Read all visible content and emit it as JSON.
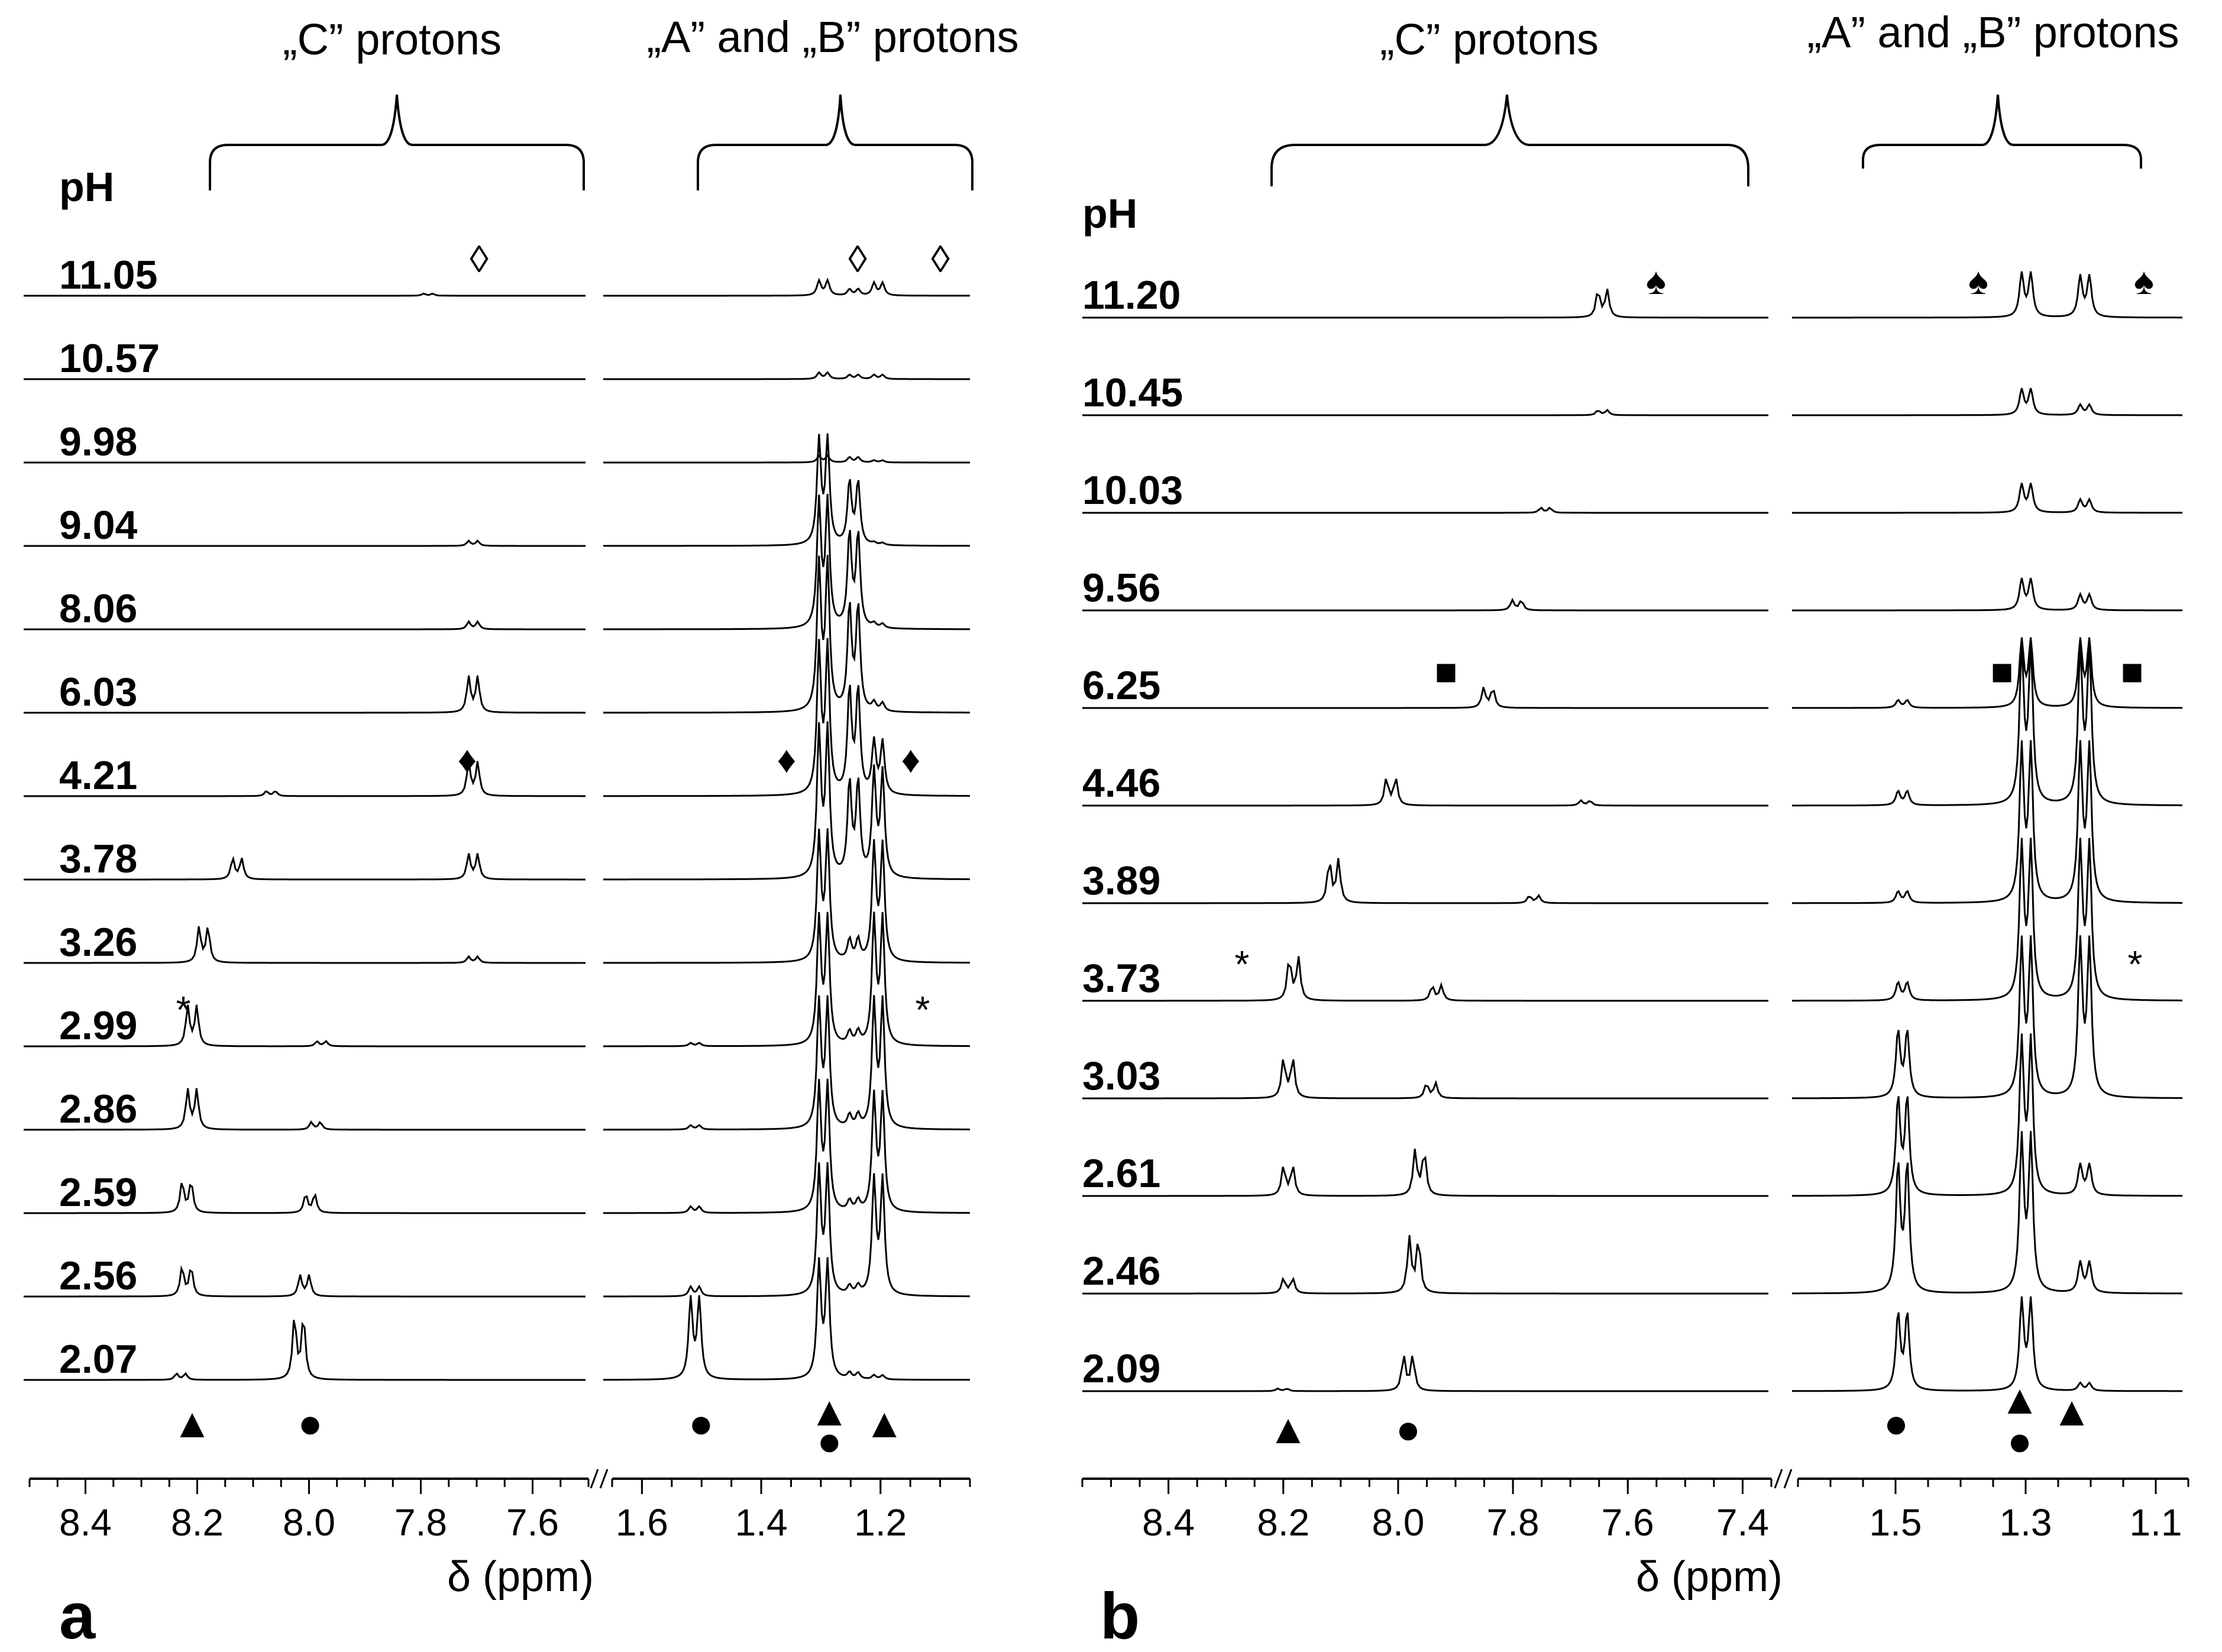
{
  "chart_data": [
    {
      "type": "line",
      "subtype": "stacked NMR spectra (1H, pH titration)",
      "panel_label": "a",
      "xlabel": "δ (ppm)",
      "x_axis_reversed": true,
      "x_axis_break": "//",
      "row_header": "pH",
      "group_labels": {
        "c": "„C” protons",
        "ab": "„A” and „B” protons"
      },
      "xlim_c": [
        8.5,
        7.5
      ],
      "xlim_ab": [
        1.65,
        1.05
      ],
      "xticks_c": [
        "8.4",
        "8.2",
        "8.0",
        "7.8",
        "7.6"
      ],
      "xticks_ab": [
        "1.6",
        "1.4",
        "1.2"
      ],
      "ph_values": [
        "11.05",
        "10.57",
        "9.98",
        "9.04",
        "8.06",
        "6.03",
        "4.21",
        "3.78",
        "3.26",
        "2.99",
        "2.86",
        "2.59",
        "2.56",
        "2.07"
      ],
      "c_doublet_ppm": [
        7.78,
        null,
        null,
        7.7,
        7.7,
        7.7,
        7.7,
        8.12,
        8.18,
        8.2,
        8.2,
        8.21,
        8.21,
        8.22
      ],
      "c_doublet_rel_height": [
        0.05,
        0.0,
        0.0,
        0.12,
        0.18,
        0.85,
        0.8,
        0.5,
        0.85,
        0.95,
        0.95,
        0.75,
        0.7,
        0.15
      ],
      "c_doublet2_ppm": [
        null,
        null,
        null,
        null,
        null,
        null,
        8.06,
        7.7,
        7.7,
        7.97,
        7.98,
        7.99,
        8.0,
        8.01
      ],
      "c_doublet2_rel_height": [
        0.0,
        0.0,
        0.0,
        0.0,
        0.0,
        0.0,
        0.12,
        0.6,
        0.15,
        0.12,
        0.18,
        0.45,
        0.5,
        1.5
      ],
      "ab_peak_ppm": {
        "doublet_1.50": 1.5,
        "doublet_1.29": 1.29,
        "doublet_1.24": 1.24,
        "doublet_1.20": 1.2
      },
      "ab_heights_per_ph": {
        "doublet_1.50": [
          0.0,
          0.0,
          0.0,
          0.0,
          0.0,
          0.0,
          0.0,
          0.0,
          0.0,
          0.15,
          0.2,
          0.3,
          0.45,
          3.8
        ],
        "doublet_1.29": [
          0.7,
          0.3,
          0.3,
          5.0,
          6.0,
          7.0,
          7.0,
          7.0,
          6.0,
          6.0,
          6.0,
          6.0,
          6.0,
          5.5
        ],
        "doublet_1.24": [
          0.3,
          0.2,
          0.25,
          3.0,
          4.5,
          5.0,
          5.0,
          4.5,
          1.0,
          0.6,
          0.6,
          0.5,
          0.4,
          0.3
        ],
        "doublet_1.20": [
          0.6,
          0.2,
          0.1,
          0.1,
          0.2,
          0.4,
          2.5,
          5.0,
          5.5,
          6.0,
          6.0,
          5.5,
          5.5,
          0.2
        ]
      },
      "marker_rows": {
        "open_diamond": "11.05",
        "filled_diamond": "4.21",
        "asterisk": "2.99"
      },
      "bottom_markers": [
        "▲",
        "●",
        "●",
        "▲",
        "●",
        "▲"
      ],
      "bottom_marker_ppm": [
        8.2,
        7.99,
        1.49,
        1.28,
        1.28,
        1.19
      ]
    },
    {
      "type": "line",
      "subtype": "stacked NMR spectra (1H, pH titration)",
      "panel_label": "b",
      "xlabel": "δ (ppm)",
      "x_axis_reversed": true,
      "x_axis_break": "//",
      "row_header": "pH",
      "group_labels": {
        "c": "„C” protons",
        "ab": "„A” and „B” protons"
      },
      "xlim_c": [
        8.55,
        7.35
      ],
      "xlim_ab": [
        1.65,
        1.05
      ],
      "xticks_c": [
        "8.4",
        "8.2",
        "8.0",
        "7.8",
        "7.6",
        "7.4"
      ],
      "xticks_ab": [
        "1.5",
        "1.3",
        "1.1"
      ],
      "ph_values": [
        "11.20",
        "10.45",
        "10.03",
        "9.56",
        "6.25",
        "4.46",
        "3.89",
        "3.73",
        "3.03",
        "2.61",
        "2.46",
        "2.09"
      ],
      "c_doublet_ppm": [
        7.64,
        7.64,
        7.74,
        7.79,
        7.84,
        8.01,
        8.11,
        8.18,
        8.19,
        8.19,
        8.19,
        8.2
      ],
      "c_doublet_rel_height": [
        0.55,
        0.1,
        0.1,
        0.2,
        0.4,
        0.55,
        0.85,
        0.85,
        0.8,
        0.6,
        0.3,
        0.05
      ],
      "c_doublet2_ppm": [
        null,
        null,
        null,
        null,
        null,
        7.67,
        7.76,
        7.93,
        7.94,
        7.96,
        7.97,
        7.98
      ],
      "c_doublet2_rel_height": [
        0.0,
        0.0,
        0.0,
        0.0,
        0.0,
        0.1,
        0.15,
        0.3,
        0.3,
        0.9,
        1.1,
        0.7
      ],
      "ab_peak_ppm": {
        "doublet_1.48": 1.48,
        "doublet_1.29": 1.29,
        "doublet_1.20": 1.2
      },
      "ab_heights_per_ph": {
        "doublet_1.48": [
          0.0,
          0.0,
          0.0,
          0.0,
          0.3,
          0.55,
          0.45,
          0.7,
          2.6,
          3.8,
          5.0,
          3.0
        ],
        "doublet_1.29": [
          1.7,
          1.0,
          1.1,
          1.2,
          2.6,
          6.0,
          6.0,
          6.0,
          6.0,
          6.0,
          6.0,
          3.5
        ],
        "doublet_1.20": [
          1.6,
          0.4,
          0.5,
          0.6,
          2.6,
          6.0,
          6.0,
          6.0,
          6.0,
          1.2,
          1.2,
          0.3
        ]
      },
      "marker_rows": {
        "spade": "11.20",
        "filled_square": "6.25",
        "asterisk": "3.73"
      },
      "bottom_markers": [
        "▲",
        "●",
        "●",
        "▲",
        "●",
        "▲"
      ],
      "bottom_marker_ppm": [
        8.19,
        7.98,
        1.49,
        1.3,
        1.3,
        1.22
      ]
    }
  ],
  "marker_glyphs": {
    "open_diamond": "◊",
    "filled_diamond": "♦",
    "asterisk": "*",
    "spade": "♠",
    "filled_square": "■",
    "triangle": "▲",
    "circle": "●"
  }
}
